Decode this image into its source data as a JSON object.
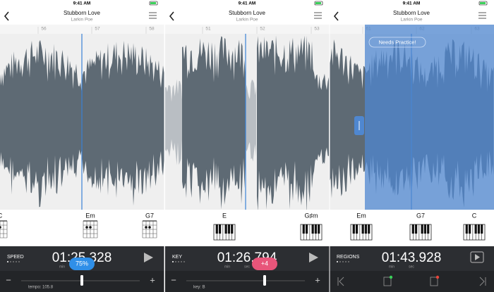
{
  "screens": [
    {
      "status_time": "9:41 AM",
      "title": "Stubborn Love",
      "artist": "Larkin Poe",
      "bars": [
        "56",
        "57",
        "58"
      ],
      "chords": [
        "C",
        "Em",
        "G7"
      ],
      "mode": "SPEED",
      "time": "01:25.328",
      "time_units": [
        "min",
        "sec"
      ],
      "badge": "75%",
      "setting": "tempo: 105.8"
    },
    {
      "status_time": "9:41 AM",
      "title": "Stubborn Love",
      "artist": "Larkin Poe",
      "bars": [
        "51",
        "52",
        "53"
      ],
      "chords": [
        "E",
        "G♯m"
      ],
      "mode": "KEY",
      "time": "01:26.794",
      "time_units": [
        "min",
        "sec"
      ],
      "badge": "+4",
      "setting": "key: B"
    },
    {
      "status_time": "9:41 AM",
      "title": "Stubborn Love",
      "artist": "Larkin Poe",
      "bars": [
        "61",
        "62",
        "63"
      ],
      "region_label": "Needs Practice!",
      "chords": [
        "Em",
        "G7",
        "C"
      ],
      "mode": "REGIONS",
      "time": "01:43.928",
      "time_units": [
        "min",
        "sec"
      ]
    }
  ]
}
